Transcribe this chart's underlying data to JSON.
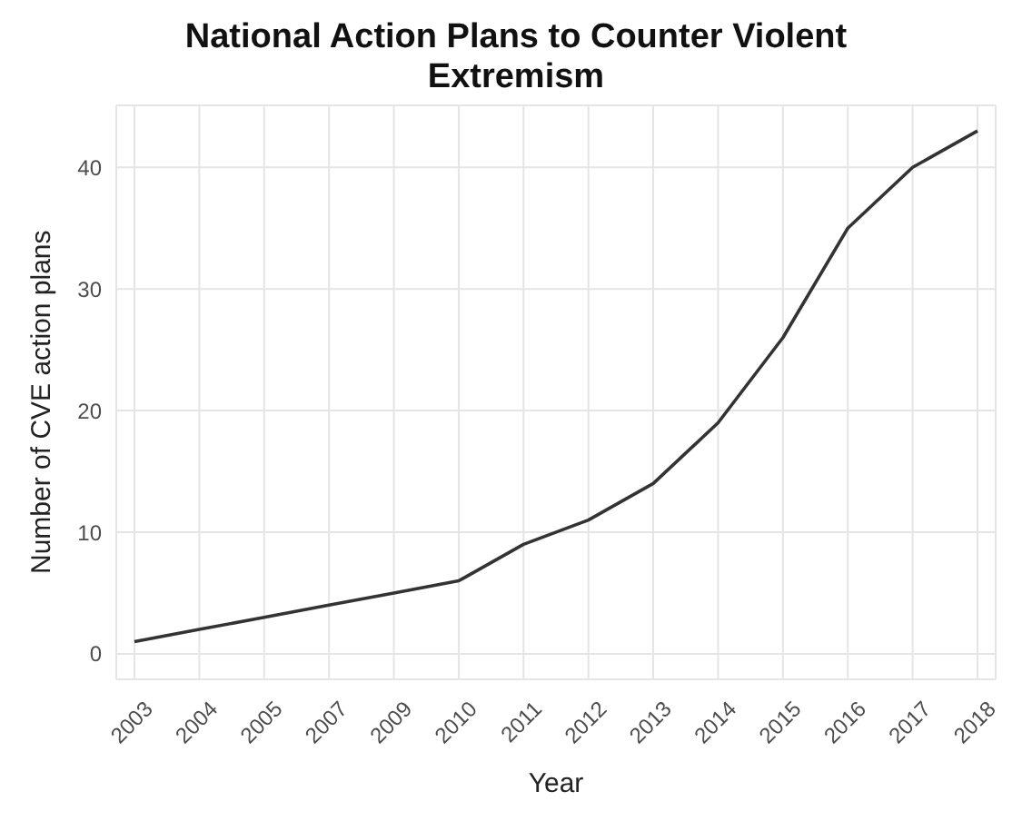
{
  "chart_data": {
    "type": "line",
    "title": "National Action Plans to Counter Violent Extremism",
    "xlabel": "Year",
    "ylabel": "Number of CVE action plans",
    "categories": [
      "2003",
      "2004",
      "2005",
      "2007",
      "2009",
      "2010",
      "2011",
      "2012",
      "2013",
      "2014",
      "2015",
      "2016",
      "2017",
      "2018"
    ],
    "series": [
      {
        "color": "#333333",
        "values": [
          1,
          2,
          3,
          4,
          5,
          6,
          9,
          11,
          14,
          19,
          26,
          35,
          40,
          43
        ]
      }
    ],
    "ylim": [
      -2.1,
      45.1
    ],
    "yticks": [
      0,
      10,
      20,
      30,
      40
    ],
    "grid": true,
    "marker": "none",
    "line_style": "solid"
  }
}
